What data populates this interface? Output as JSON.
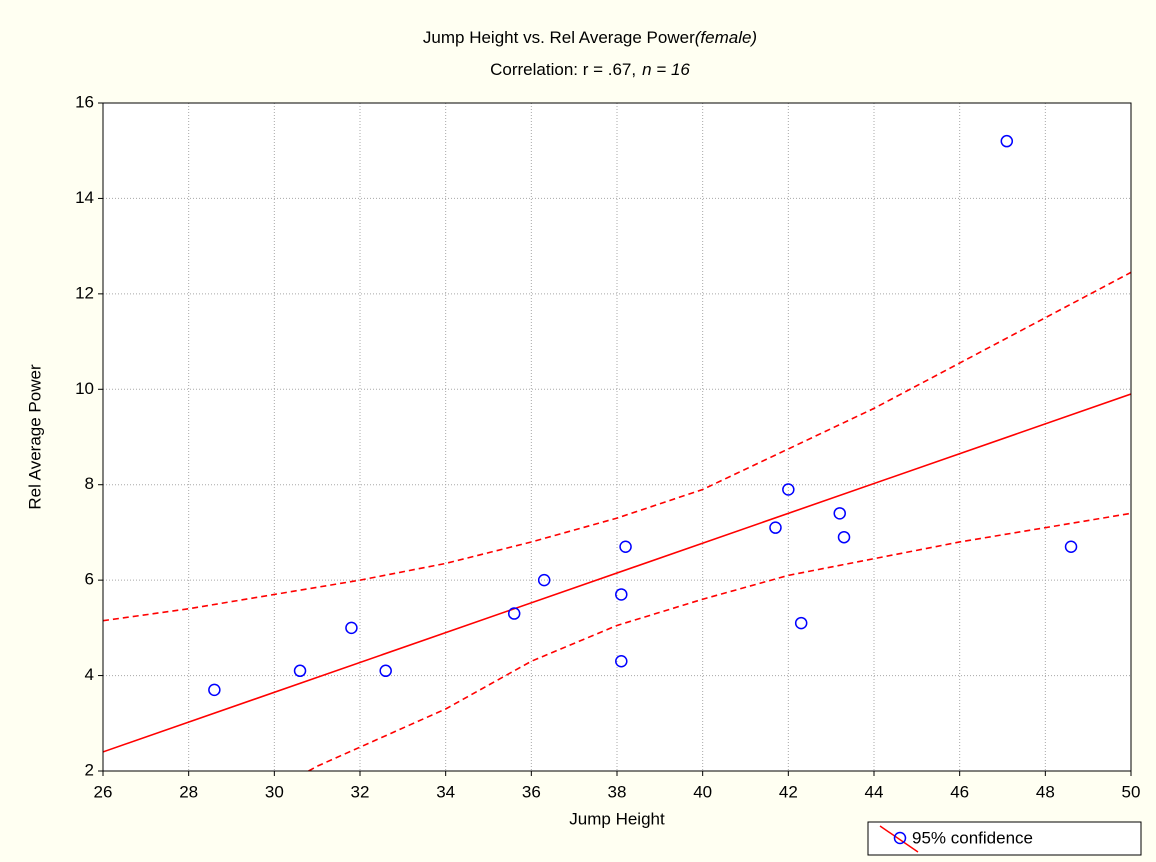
{
  "chart_data": {
    "type": "scatter",
    "title": "Jump Height vs. Rel Average Power",
    "title_note": "(female)",
    "subtitle": "Correlation: r = .67,",
    "subtitle_note": "n = 16",
    "xlabel": "Jump Height",
    "ylabel": "Rel Average Power",
    "xlim": [
      26,
      50
    ],
    "ylim": [
      2,
      16
    ],
    "xticks": [
      26,
      28,
      30,
      32,
      34,
      36,
      38,
      40,
      42,
      44,
      46,
      48,
      50
    ],
    "yticks": [
      2,
      4,
      6,
      8,
      10,
      12,
      14,
      16
    ],
    "grid": true,
    "legend": "bottom right",
    "series": [
      {
        "name": "95% confidence",
        "color": "#0000ff",
        "x": [
          28.6,
          30.6,
          31.8,
          32.6,
          35.6,
          36.3,
          38.1,
          38.1,
          38.2,
          41.7,
          42.0,
          42.3,
          43.2,
          43.3,
          48.6,
          47.1
        ],
        "values": [
          3.7,
          4.1,
          5.0,
          4.1,
          5.3,
          6.0,
          4.3,
          5.7,
          6.7,
          7.1,
          7.9,
          5.1,
          7.4,
          6.9,
          6.7,
          15.2
        ]
      }
    ],
    "fit": {
      "color": "#ff0000",
      "x": [
        26,
        50
      ],
      "values": [
        2.4,
        9.9
      ]
    },
    "confidence_bands": [
      {
        "x": [
          26,
          28,
          30,
          32,
          34,
          36,
          38,
          40,
          42,
          44,
          46,
          48,
          50
        ],
        "values": [
          5.15,
          5.4,
          5.7,
          6.0,
          6.35,
          6.8,
          7.3,
          7.9,
          8.75,
          9.6,
          10.55,
          11.5,
          12.45
        ]
      },
      {
        "x": [
          30.8,
          31,
          32,
          34,
          36,
          38,
          40,
          42,
          44,
          46,
          48,
          50
        ],
        "values": [
          2.0,
          2.1,
          2.5,
          3.3,
          4.3,
          5.05,
          5.6,
          6.1,
          6.45,
          6.8,
          7.1,
          7.4
        ]
      }
    ]
  }
}
